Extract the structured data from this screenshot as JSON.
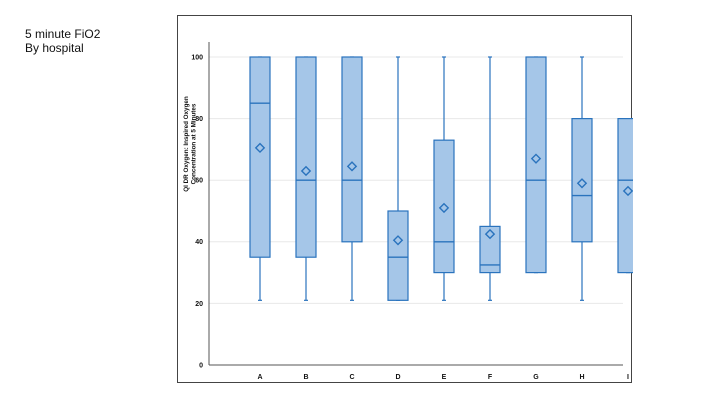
{
  "slide": {
    "title_line1": "5 minute FiO2",
    "title_line2": "By hospital"
  },
  "chart_data": {
    "type": "box",
    "title": "",
    "xlabel": "",
    "ylabel_lines": [
      "QI DR Oxygen: Inspired Oxygen",
      "Concentration at 5 Minutes"
    ],
    "ylim": [
      0,
      100
    ],
    "yticks": [
      0,
      20,
      40,
      60,
      80,
      100
    ],
    "grid": true,
    "colors": {
      "box_fill": "#a5c6e8",
      "box_stroke": "#2a73bd",
      "grid": "#e8e8e8",
      "axis": "#555555"
    },
    "categories": [
      "A",
      "B",
      "C",
      "D",
      "E",
      "F",
      "G",
      "H",
      "I"
    ],
    "boxes": [
      {
        "category": "A",
        "min": 21,
        "q1": 35,
        "median": 85,
        "q3": 100,
        "max": 100,
        "mean": 70.5
      },
      {
        "category": "B",
        "min": 21,
        "q1": 35,
        "median": 60,
        "q3": 100,
        "max": 100,
        "mean": 63
      },
      {
        "category": "C",
        "min": 21,
        "q1": 40,
        "median": 60,
        "q3": 100,
        "max": 100,
        "mean": 64.5
      },
      {
        "category": "D",
        "min": 21,
        "q1": 21,
        "median": 35,
        "q3": 50,
        "max": 100,
        "mean": 40.5
      },
      {
        "category": "E",
        "min": 21,
        "q1": 30,
        "median": 40,
        "q3": 73,
        "max": 100,
        "mean": 51
      },
      {
        "category": "F",
        "min": 21,
        "q1": 30,
        "median": 32.5,
        "q3": 45,
        "max": 100,
        "mean": 42.5
      },
      {
        "category": "G",
        "min": 30,
        "q1": 30,
        "median": 60,
        "q3": 100,
        "max": 100,
        "mean": 67
      },
      {
        "category": "H",
        "min": 21,
        "q1": 40,
        "median": 55,
        "q3": 80,
        "max": 100,
        "mean": 59
      },
      {
        "category": "I",
        "min": 30,
        "q1": 30,
        "median": 60,
        "q3": 80,
        "max": 80,
        "mean": 56.5
      }
    ]
  }
}
